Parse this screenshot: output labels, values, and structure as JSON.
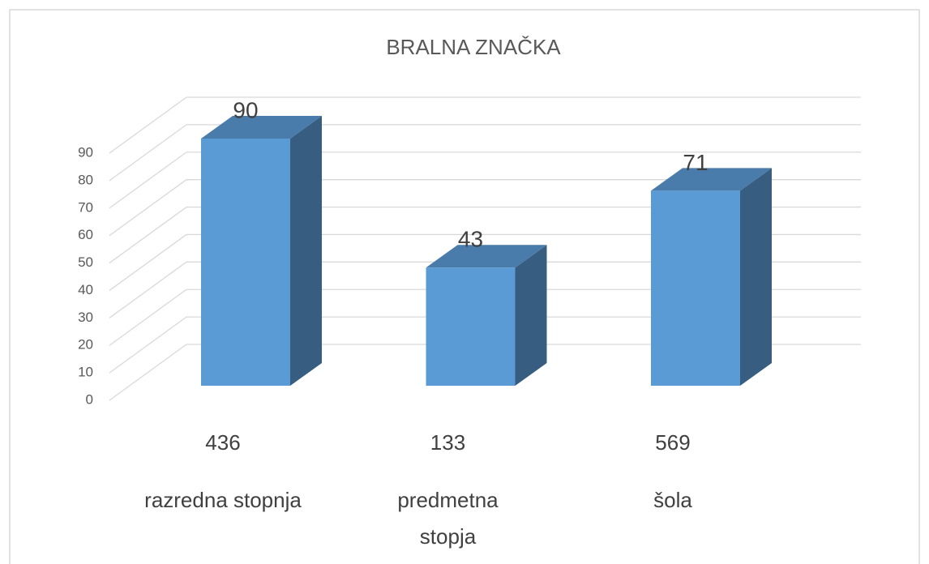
{
  "chart_data": {
    "type": "bar3d",
    "title": "BRALNA ZNAČKA",
    "categories": [
      "razredna stopnja",
      "predmetna\nstopja",
      "šola"
    ],
    "category_counts": [
      436,
      133,
      569
    ],
    "values": [
      90,
      43,
      71
    ],
    "color": "#5b9bd5",
    "ylim": [
      0,
      90
    ],
    "yticks": [
      0,
      10,
      20,
      30,
      40,
      50,
      60,
      70,
      80,
      90
    ],
    "grid": true
  }
}
